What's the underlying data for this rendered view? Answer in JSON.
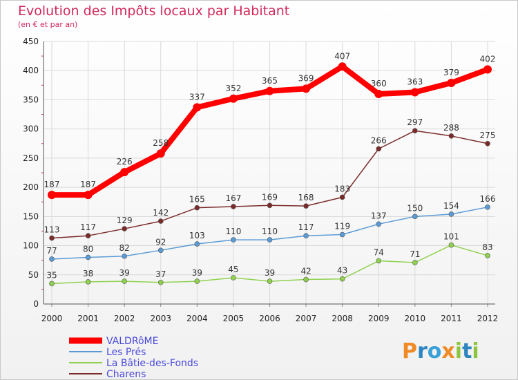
{
  "chart_data": {
    "type": "line",
    "title": "Evolution des Impôts locaux par Habitant",
    "subtitle": "(en € et par an)",
    "x": [
      "2000",
      "2001",
      "2002",
      "2003",
      "2004",
      "2005",
      "2006",
      "2007",
      "2008",
      "2009",
      "2010",
      "2011",
      "2012"
    ],
    "ylim": [
      0,
      450
    ],
    "yticks": [
      0,
      50,
      100,
      150,
      200,
      250,
      300,
      350,
      400,
      450
    ],
    "grid": true,
    "legend_position": "bottom-left",
    "series": [
      {
        "name": "VALDRôME",
        "color": "#ff0000",
        "values": [
          187,
          187,
          226,
          258,
          337,
          352,
          365,
          369,
          407,
          360,
          363,
          379,
          402
        ]
      },
      {
        "name": "Les Prés",
        "color": "#5b9bd5",
        "values": [
          77,
          80,
          82,
          92,
          103,
          110,
          110,
          117,
          119,
          137,
          150,
          154,
          166
        ]
      },
      {
        "name": "La Bâtie-des-Fonds",
        "color": "#8fd14f",
        "values": [
          35,
          38,
          39,
          37,
          39,
          45,
          39,
          42,
          43,
          74,
          71,
          101,
          83
        ]
      },
      {
        "name": "Charens",
        "color": "#7b2a2a",
        "values": [
          113,
          117,
          129,
          142,
          165,
          167,
          169,
          168,
          183,
          266,
          297,
          288,
          275
        ]
      }
    ]
  },
  "logo": {
    "text": "Proxiti"
  }
}
